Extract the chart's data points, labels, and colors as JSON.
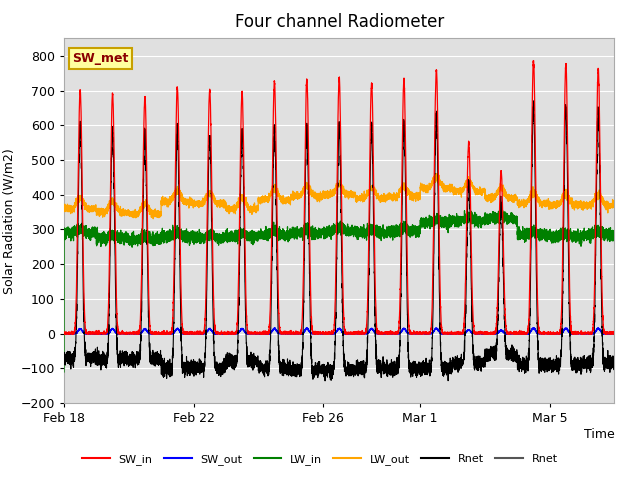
{
  "title": "Four channel Radiometer",
  "xlabel": "Time",
  "ylabel": "Solar Radiation (W/m2)",
  "ylim": [
    -200,
    850
  ],
  "yticks": [
    -200,
    -100,
    0,
    100,
    200,
    300,
    400,
    500,
    600,
    700,
    800
  ],
  "x_tick_labels": [
    "Feb 18",
    "Feb 22",
    "Feb 26",
    "Mar 1",
    "Mar 5"
  ],
  "x_tick_positions": [
    0,
    4,
    8,
    11,
    15
  ],
  "legend_labels": [
    "SW_in",
    "SW_out",
    "LW_in",
    "LW_out",
    "Rnet",
    "Rnet"
  ],
  "legend_colors": [
    "red",
    "blue",
    "green",
    "orange",
    "black",
    "#555555"
  ],
  "sw_met_label": "SW_met",
  "plot_bg_color": "#e0e0e0",
  "n_days": 17,
  "title_fontsize": 12,
  "sw_peaks": [
    700,
    690,
    680,
    710,
    700,
    695,
    725,
    730,
    735,
    720,
    730,
    760,
    550,
    470,
    785,
    775,
    760
  ],
  "lw_in_base": [
    290,
    275,
    270,
    280,
    275,
    280,
    285,
    290,
    295,
    290,
    295,
    320,
    325,
    330,
    285,
    280,
    285
  ],
  "lw_out_base": [
    360,
    350,
    345,
    380,
    375,
    360,
    385,
    395,
    400,
    390,
    395,
    420,
    410,
    390,
    375,
    370,
    370
  ],
  "pts_per_day": 480
}
